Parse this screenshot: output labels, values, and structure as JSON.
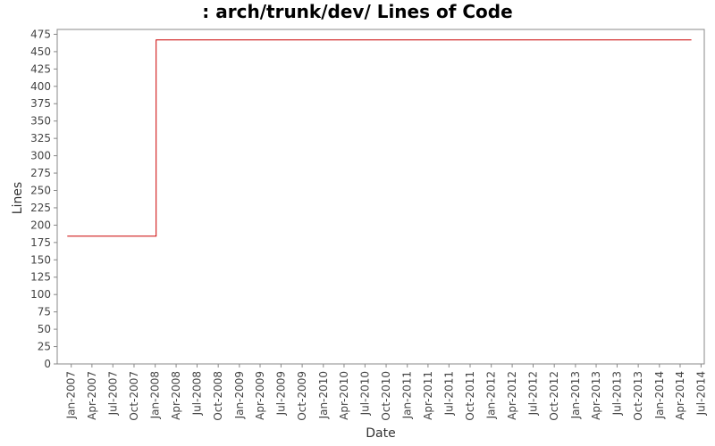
{
  "chart_data": {
    "type": "line",
    "title": ": arch/trunk/dev/ Lines of Code",
    "xlabel": "Date",
    "ylabel": "Lines",
    "x_tick_labels": [
      "Jan-2007",
      "Apr-2007",
      "Jul-2007",
      "Oct-2007",
      "Jan-2008",
      "Apr-2008",
      "Jul-2008",
      "Oct-2008",
      "Jan-2009",
      "Apr-2009",
      "Jul-2009",
      "Oct-2009",
      "Jan-2010",
      "Apr-2010",
      "Jul-2010",
      "Oct-2010",
      "Jan-2011",
      "Apr-2011",
      "Jul-2011",
      "Oct-2011",
      "Jan-2012",
      "Apr-2012",
      "Jul-2012",
      "Oct-2012",
      "Jan-2013",
      "Apr-2013",
      "Jul-2013",
      "Oct-2013",
      "Jan-2014",
      "Apr-2014",
      "Jul-2014"
    ],
    "y_ticks": [
      0,
      25,
      50,
      75,
      100,
      125,
      150,
      175,
      200,
      225,
      250,
      275,
      300,
      325,
      350,
      375,
      400,
      425,
      450,
      475
    ],
    "ylim": [
      0,
      482
    ],
    "xlim": [
      "2006-11-01",
      "2014-07-15"
    ],
    "grid": false,
    "series": [
      {
        "color": "#cc0000",
        "step": true,
        "x": [
          "2006-12-15",
          "2008-01-05",
          "2014-05-20"
        ],
        "y": [
          184,
          467,
          467
        ]
      }
    ]
  }
}
